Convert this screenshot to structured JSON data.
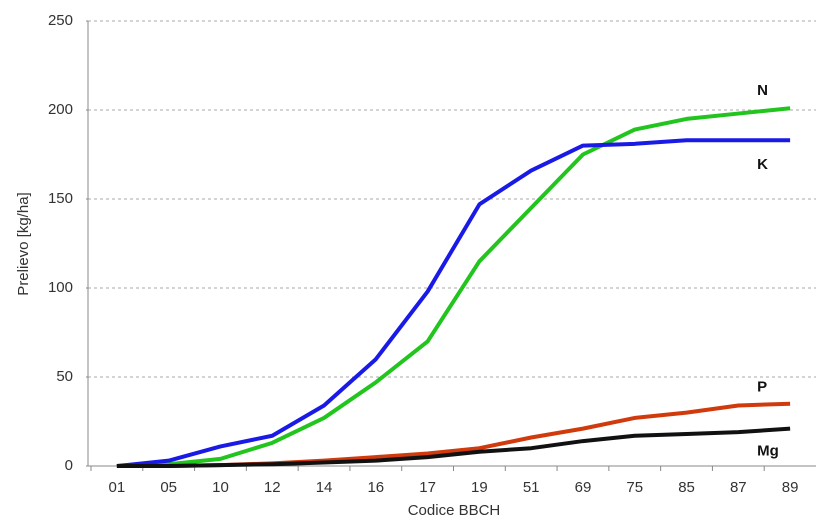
{
  "chart_data": {
    "type": "line",
    "x_label": "Codice BBCH",
    "y_label": "Prelievo [kg/ha]",
    "categories": [
      "01",
      "05",
      "10",
      "12",
      "14",
      "16",
      "17",
      "19",
      "51",
      "69",
      "75",
      "85",
      "87",
      "89"
    ],
    "series": [
      {
        "name": "N",
        "color": "#22c41e",
        "values": [
          0,
          1,
          4,
          13,
          27,
          47,
          70,
          115,
          145,
          175,
          189,
          195,
          198,
          201
        ]
      },
      {
        "name": "K",
        "color": "#1a1ae6",
        "values": [
          0,
          3,
          11,
          17,
          34,
          60,
          98,
          147,
          166,
          180,
          181,
          183,
          183,
          183
        ]
      },
      {
        "name": "P",
        "color": "#d03a0c",
        "values": [
          0,
          0,
          0.5,
          1.5,
          3,
          5,
          7,
          10,
          16,
          21,
          27,
          30,
          34,
          35
        ]
      },
      {
        "name": "Mg",
        "color": "#111111",
        "values": [
          0,
          0,
          0.5,
          1,
          2,
          3,
          5,
          8,
          10,
          14,
          17,
          18,
          19,
          21
        ]
      }
    ],
    "ylim": [
      0,
      250
    ],
    "yticks": [
      0,
      50,
      100,
      150,
      200,
      250
    ],
    "grid": true
  }
}
